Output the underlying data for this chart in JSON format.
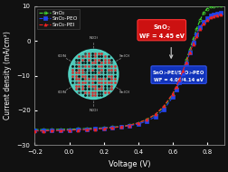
{
  "title": "",
  "xlabel": "Voltage (V)",
  "ylabel": "Current density (mA/cm²)",
  "xlim": [
    -0.2,
    0.9
  ],
  "ylim": [
    -30,
    10
  ],
  "xticks": [
    -0.2,
    0.0,
    0.2,
    0.4,
    0.6,
    0.8
  ],
  "yticks": [
    -30,
    -20,
    -10,
    0,
    10
  ],
  "legend_labels": [
    "SnO₂",
    "SnO₂-PEO",
    "SnO₂-PEI"
  ],
  "line_colors": [
    "#44dd33",
    "#2244ee",
    "#ee2222"
  ],
  "bg_color": "#111111",
  "plot_bg": "#111111",
  "tick_color": "#ffffff",
  "label_color": "#ffffff",
  "spine_color": "#888888",
  "sno2_v": [
    -0.2,
    -0.15,
    -0.1,
    -0.05,
    0.0,
    0.05,
    0.1,
    0.15,
    0.2,
    0.25,
    0.3,
    0.35,
    0.4,
    0.45,
    0.5,
    0.55,
    0.6,
    0.62,
    0.64,
    0.66,
    0.68,
    0.7,
    0.72,
    0.74,
    0.76,
    0.78,
    0.8,
    0.82,
    0.84,
    0.86,
    0.88
  ],
  "sno2_j": [
    -25.5,
    -25.5,
    -25.5,
    -25.4,
    -25.4,
    -25.3,
    -25.2,
    -25.1,
    -25.0,
    -24.8,
    -24.6,
    -24.2,
    -23.6,
    -22.6,
    -21.2,
    -19.0,
    -15.5,
    -13.5,
    -11.2,
    -8.5,
    -5.5,
    -2.5,
    0.5,
    3.5,
    6.0,
    8.0,
    9.2,
    9.8,
    10.0,
    10.2,
    10.3
  ],
  "peo_v": [
    -0.2,
    -0.15,
    -0.1,
    -0.05,
    0.0,
    0.05,
    0.1,
    0.15,
    0.2,
    0.25,
    0.3,
    0.35,
    0.4,
    0.45,
    0.5,
    0.55,
    0.6,
    0.62,
    0.64,
    0.66,
    0.68,
    0.7,
    0.72,
    0.74,
    0.76,
    0.78,
    0.8,
    0.82,
    0.84,
    0.86,
    0.88
  ],
  "peo_j": [
    -25.8,
    -25.8,
    -25.7,
    -25.7,
    -25.6,
    -25.5,
    -25.4,
    -25.3,
    -25.1,
    -24.9,
    -24.7,
    -24.4,
    -23.9,
    -23.1,
    -21.8,
    -19.7,
    -16.2,
    -14.1,
    -12.0,
    -9.4,
    -6.5,
    -3.3,
    -0.4,
    1.9,
    4.0,
    5.5,
    6.5,
    7.2,
    7.5,
    7.8,
    8.0
  ],
  "pei_v": [
    -0.2,
    -0.15,
    -0.1,
    -0.05,
    0.0,
    0.05,
    0.1,
    0.15,
    0.2,
    0.25,
    0.3,
    0.35,
    0.4,
    0.45,
    0.5,
    0.55,
    0.6,
    0.62,
    0.64,
    0.66,
    0.68,
    0.7,
    0.72,
    0.74,
    0.76,
    0.78,
    0.8,
    0.82,
    0.84,
    0.86,
    0.88
  ],
  "pei_j": [
    -25.9,
    -25.9,
    -25.8,
    -25.8,
    -25.7,
    -25.6,
    -25.5,
    -25.4,
    -25.2,
    -25.0,
    -24.7,
    -24.3,
    -23.6,
    -22.6,
    -21.1,
    -18.7,
    -15.2,
    -13.2,
    -11.1,
    -8.6,
    -6.1,
    -3.3,
    -0.9,
    1.4,
    3.4,
    4.9,
    5.9,
    6.7,
    7.1,
    7.4,
    7.6
  ]
}
